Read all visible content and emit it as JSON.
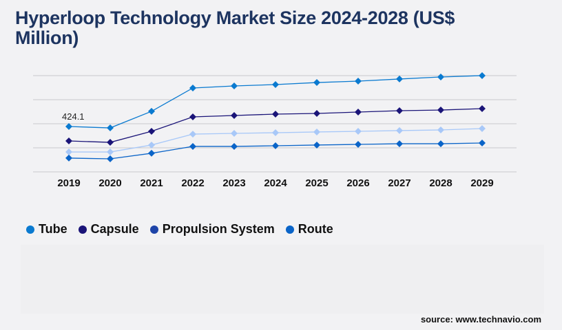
{
  "title": "Hyperloop Technology Market Size 2024-2028 (US$ Million)",
  "source": "source: www.technavio.com",
  "chart_data": {
    "type": "line",
    "title": "Hyperloop Technology Market Size 2024-2028 (US$ Million)",
    "categories": [
      "2019",
      "2020",
      "2021",
      "2022",
      "2023",
      "2024",
      "2025",
      "2026",
      "2027",
      "2028",
      "2029"
    ],
    "ylim": [
      0,
      900
    ],
    "grid": true,
    "legend_position": "bottom-left",
    "annotations": [
      {
        "series": "Tube",
        "category": "2019",
        "label": "424.1"
      }
    ],
    "series": [
      {
        "name": "Tube",
        "legend_color": "#0a7ad0",
        "line_color": "#0a7ad0",
        "values": [
          424.1,
          411,
          566,
          784,
          803,
          816,
          835,
          848,
          868,
          887,
          900
        ]
      },
      {
        "name": "Capsule",
        "legend_color": "#1a1478",
        "line_color": "#1a1478",
        "values": [
          289,
          276,
          379,
          514,
          527,
          540,
          546,
          559,
          572,
          578,
          591
        ]
      },
      {
        "name": "Propulsion System",
        "legend_color": "#1e44a8",
        "line_color": "#a8c8f8",
        "values": [
          186,
          186,
          251,
          353,
          360,
          366,
          373,
          379,
          386,
          392,
          405
        ]
      },
      {
        "name": "Route",
        "legend_color": "#0a64c8",
        "line_color": "#0a64c8",
        "values": [
          129,
          122,
          174,
          238,
          238,
          244,
          251,
          257,
          263,
          263,
          270
        ]
      }
    ]
  }
}
